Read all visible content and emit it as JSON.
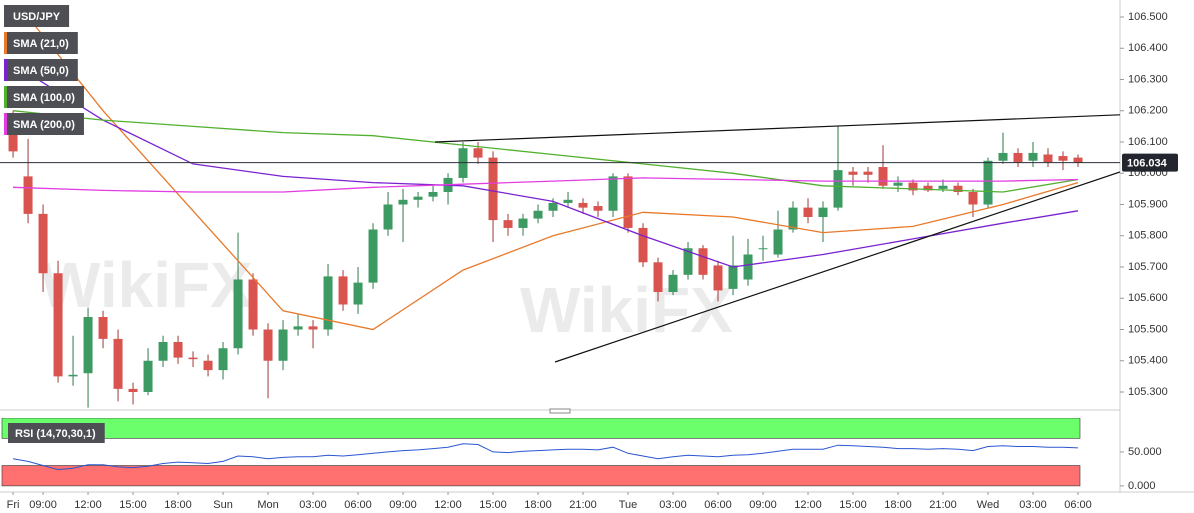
{
  "chart_data": [
    {
      "type": "candlestick",
      "watermark": "WikiFX",
      "categories": [
        "Fri",
        null,
        "09:00",
        null,
        null,
        "12:00",
        null,
        null,
        "15:00",
        null,
        null,
        "18:00",
        null,
        null,
        "Sun",
        null,
        null,
        "Mon",
        null,
        null,
        "03:00",
        null,
        null,
        "06:00",
        null,
        null,
        "09:00",
        null,
        null,
        "12:00",
        null,
        null,
        "15:00",
        null,
        null,
        "18:00",
        null,
        null,
        "21:00",
        null,
        null,
        "Tue",
        null,
        null,
        "03:00",
        null,
        null,
        "06:00",
        null,
        null,
        "09:00",
        null,
        null,
        "12:00",
        null,
        null,
        "15:00",
        null,
        null,
        "18:00",
        null,
        null,
        "21:00",
        null,
        null,
        "Wed",
        null,
        null,
        "03:00",
        null,
        null,
        "06:00"
      ],
      "xlim": [
        -0.87,
        73.8
      ],
      "candles": {
        "name": "USD/JPY",
        "up_color": "#3d9a62",
        "down_color": "#d9534f",
        "open": [
          106.15,
          105.99,
          105.87,
          105.68,
          105.35,
          105.36,
          105.54,
          105.47,
          105.31,
          105.3,
          105.4,
          105.46,
          105.41,
          105.4,
          105.37,
          105.44,
          105.66,
          105.5,
          105.4,
          105.5,
          105.51,
          105.5,
          105.67,
          105.58,
          105.65,
          105.82,
          105.9,
          105.915,
          105.925,
          105.94,
          105.985,
          106.08,
          106.05,
          105.85,
          105.825,
          105.855,
          105.88,
          105.905,
          105.905,
          105.895,
          105.88,
          105.99,
          105.825,
          105.715,
          105.62,
          105.675,
          105.76,
          105.705,
          105.63,
          105.66,
          105.76,
          105.74,
          105.82,
          105.89,
          105.86,
          105.89,
          106.005,
          106.005,
          106.02,
          105.96,
          105.97,
          105.96,
          105.95,
          105.96,
          105.94,
          105.9,
          106.04,
          106.065,
          106.04,
          106.06,
          106.055,
          106.05
        ],
        "high": [
          106.2,
          106.11,
          105.9,
          105.72,
          105.48,
          105.57,
          105.56,
          105.5,
          105.33,
          105.44,
          105.48,
          105.48,
          105.43,
          105.42,
          105.46,
          105.81,
          105.68,
          105.52,
          105.53,
          105.55,
          105.53,
          105.71,
          105.69,
          105.7,
          105.84,
          105.94,
          105.95,
          105.94,
          105.96,
          106.0,
          106.1,
          106.1,
          106.07,
          105.87,
          105.87,
          105.9,
          105.92,
          105.94,
          105.92,
          105.91,
          106.0,
          106.0,
          105.84,
          105.73,
          105.69,
          105.78,
          105.77,
          105.72,
          105.8,
          105.79,
          105.8,
          105.88,
          105.91,
          105.92,
          105.91,
          106.15,
          106.02,
          106.02,
          106.09,
          105.99,
          105.98,
          105.97,
          105.98,
          105.97,
          105.95,
          106.05,
          106.13,
          106.08,
          106.1,
          106.08,
          106.07,
          106.06
        ],
        "low": [
          106.05,
          105.84,
          105.62,
          105.33,
          105.32,
          105.25,
          105.44,
          105.27,
          105.26,
          105.29,
          105.38,
          105.39,
          105.38,
          105.35,
          105.34,
          105.42,
          105.48,
          105.28,
          105.37,
          105.48,
          105.44,
          105.48,
          105.56,
          105.55,
          105.63,
          105.8,
          105.78,
          105.89,
          105.91,
          105.9,
          105.97,
          106.03,
          105.78,
          105.8,
          105.8,
          105.84,
          105.86,
          105.89,
          105.87,
          105.86,
          105.86,
          105.81,
          105.7,
          105.59,
          105.61,
          105.66,
          105.66,
          105.59,
          105.61,
          105.64,
          105.72,
          105.73,
          105.81,
          105.84,
          105.78,
          105.88,
          105.96,
          105.97,
          105.95,
          105.94,
          105.93,
          105.94,
          105.94,
          105.93,
          105.86,
          105.89,
          106.03,
          106.02,
          106.02,
          106.02,
          106.01,
          106.02
        ],
        "close": [
          106.07,
          105.87,
          105.68,
          105.35,
          105.355,
          105.54,
          105.47,
          105.31,
          105.3,
          105.4,
          105.46,
          105.41,
          105.405,
          105.37,
          105.44,
          105.66,
          105.5,
          105.4,
          105.5,
          105.51,
          105.5,
          105.67,
          105.58,
          105.65,
          105.82,
          105.9,
          105.915,
          105.925,
          105.94,
          105.985,
          106.08,
          106.05,
          105.85,
          105.825,
          105.855,
          105.88,
          105.905,
          105.915,
          105.89,
          105.88,
          105.99,
          105.825,
          105.715,
          105.62,
          105.675,
          105.76,
          105.675,
          105.625,
          105.705,
          105.74,
          105.76,
          105.82,
          105.89,
          105.86,
          105.89,
          106.01,
          105.995,
          105.995,
          105.96,
          105.97,
          105.945,
          105.945,
          105.96,
          105.94,
          105.9,
          106.04,
          106.065,
          106.035,
          106.065,
          106.035,
          106.04,
          106.034
        ]
      },
      "series": [
        {
          "name": "SMA (21,0)",
          "color": "#e8792a",
          "x": [
            1,
            6,
            12,
            18,
            24,
            30,
            36,
            42,
            48,
            54,
            60,
            66,
            71
          ],
          "values": [
            106.5,
            106.2,
            105.88,
            105.56,
            105.5,
            105.69,
            105.8,
            105.875,
            105.86,
            105.81,
            105.83,
            105.9,
            105.97
          ]
        },
        {
          "name": "SMA (50,0)",
          "color": "#7a22d0",
          "x": [
            0,
            6,
            12,
            18,
            24,
            30,
            36,
            42,
            48,
            54,
            60,
            66,
            71
          ],
          "values": [
            106.35,
            106.17,
            106.03,
            105.99,
            105.97,
            105.96,
            105.91,
            105.8,
            105.7,
            105.74,
            105.79,
            105.84,
            105.88
          ]
        },
        {
          "name": "SMA (100,0)",
          "color": "#52b030",
          "x": [
            0,
            6,
            12,
            18,
            24,
            30,
            36,
            42,
            48,
            54,
            60,
            66,
            71
          ],
          "values": [
            106.2,
            106.17,
            106.15,
            106.13,
            106.12,
            106.09,
            106.06,
            106.03,
            106.0,
            105.96,
            105.95,
            105.94,
            105.98
          ]
        },
        {
          "name": "SMA (200,0)",
          "color": "#e23de2",
          "x": [
            0,
            6,
            12,
            18,
            24,
            30,
            36,
            42,
            48,
            54,
            60,
            66,
            71
          ],
          "values": [
            105.955,
            105.945,
            105.94,
            105.94,
            105.955,
            105.965,
            105.975,
            105.985,
            105.98,
            105.975,
            105.975,
            105.975,
            105.98
          ]
        }
      ],
      "trendlines": [
        {
          "color": "#111111",
          "x": [
            28.13,
            73.8
          ],
          "values": [
            106.1,
            106.187
          ]
        },
        {
          "color": "#111111",
          "x": [
            36.13,
            73.8
          ],
          "values": [
            105.396,
            106.004
          ]
        }
      ],
      "last_price": 106.034,
      "ylim": [
        105.2424,
        106.5544
      ],
      "yticks": [
        {
          "value": 106.5,
          "label": "106.500"
        },
        {
          "value": 106.4,
          "label": "106.400"
        },
        {
          "value": 106.3,
          "label": "106.300"
        },
        {
          "value": 106.2,
          "label": "106.200"
        },
        {
          "value": 106.1,
          "label": "106.100"
        },
        {
          "value": 106.0,
          "label": "106.000"
        },
        {
          "value": 105.9,
          "label": "105.900"
        },
        {
          "value": 105.8,
          "label": "105.800"
        },
        {
          "value": 105.7,
          "label": "105.700"
        },
        {
          "value": 105.6,
          "label": "105.600"
        },
        {
          "value": 105.5,
          "label": "105.500"
        },
        {
          "value": 105.4,
          "label": "105.400"
        },
        {
          "value": 105.3,
          "label": "105.300"
        }
      ]
    },
    {
      "type": "line",
      "title": "RSI (14,70,30,1)",
      "color": "#2a56d0",
      "values": [
        40,
        36,
        30,
        24,
        26,
        31,
        31,
        28,
        27,
        29,
        33,
        35,
        34,
        33,
        36,
        44,
        43,
        40,
        42,
        43,
        43,
        45,
        44,
        46,
        48,
        50,
        52,
        53,
        55,
        57,
        62,
        61,
        50,
        49,
        51,
        52,
        53,
        54,
        54,
        53,
        57,
        48,
        44,
        40,
        43,
        45,
        44,
        43,
        45,
        46,
        48,
        51,
        54,
        54,
        54,
        60,
        59,
        58,
        57,
        55,
        55,
        54,
        55,
        54,
        52,
        58,
        59,
        58,
        58,
        57,
        57,
        56
      ],
      "bands": [
        {
          "from": 70,
          "to": 100,
          "color": "#6cff6c"
        },
        {
          "from": 0,
          "to": 30,
          "color": "#ff7070"
        }
      ],
      "ylim": [
        -9,
        100
      ],
      "yticks": [
        {
          "value": 50,
          "label": "50.000"
        },
        {
          "value": 0,
          "label": "0.000"
        }
      ]
    }
  ]
}
